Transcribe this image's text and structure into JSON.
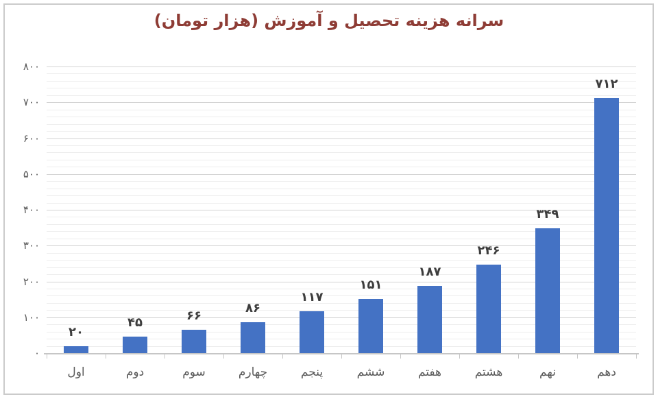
{
  "frame": {
    "border_color": "#cbcbcb",
    "background": "#ffffff"
  },
  "chart_data": {
    "type": "bar",
    "title": "سرانه هزینه تحصیل و آموزش (هزار تومان)",
    "xlabel": "",
    "ylabel": "",
    "categories": [
      "اول",
      "دوم",
      "سوم",
      "چهارم",
      "پنجم",
      "ششم",
      "هفتم",
      "هشتم",
      "نهم",
      "دهم"
    ],
    "values": [
      20,
      45,
      66,
      86,
      117,
      151,
      187,
      246,
      349,
      712
    ],
    "value_labels": [
      "۲۰",
      "۴۵",
      "۶۶",
      "۸۶",
      "۱۱۷",
      "۱۵۱",
      "۱۸۷",
      "۲۴۶",
      "۳۴۹",
      "۷۱۲"
    ],
    "y_axis": {
      "min": 0,
      "max": 800,
      "major_unit": 100,
      "minor_unit": 20,
      "tick_labels": [
        "۰",
        "۱۰۰",
        "۲۰۰",
        "۳۰۰",
        "۴۰۰",
        "۵۰۰",
        "۶۰۰",
        "۷۰۰",
        "۸۰۰"
      ]
    },
    "legend": "none",
    "grid": true,
    "colors": {
      "bar": "#4472C4",
      "title": "#8e3c35",
      "axis_labels": "#595959",
      "data_labels": "#3d3d3d",
      "gridline_major": "#d4d4d4",
      "gridline_minor": "#ededed",
      "axis_line": "#c6c6c6"
    }
  }
}
